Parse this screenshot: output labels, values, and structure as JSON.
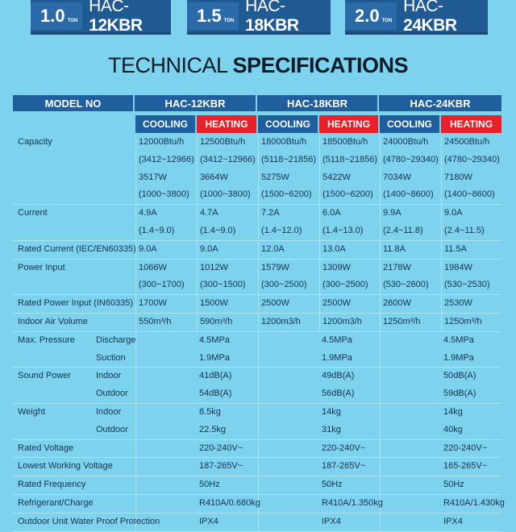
{
  "banners": [
    {
      "ton": "1.0",
      "ton_label": "TON",
      "model_prefix": "HAC-",
      "model_suffix": "12KBR"
    },
    {
      "ton": "1.5",
      "ton_label": "TON",
      "model_prefix": "HAC-",
      "model_suffix": "18KBR"
    },
    {
      "ton": "2.0",
      "ton_label": "TON",
      "model_prefix": "HAC-",
      "model_suffix": "24KBR"
    }
  ],
  "title": {
    "light": "TECHNICAL ",
    "bold": "SPECIFICATIONS"
  },
  "table": {
    "model_header": "MODEL NO",
    "models": [
      "HAC-12KBR",
      "HAC-18KBR",
      "HAC-24KBR"
    ],
    "modes": {
      "cooling": "COOLING",
      "heating": "HEATING"
    },
    "colors": {
      "header": "#1f5f9e",
      "heating": "#e8202a",
      "background": "#7dd3ee"
    },
    "rows": [
      {
        "label": "Capacity",
        "type": "modes",
        "lines": [
          [
            "12000Btu/h",
            "12500Btu/h",
            "18000Btu/h",
            "18500Btu/h",
            "24000Btu/h",
            "24500Btu/h"
          ],
          [
            "(3412~12966)",
            "(3412~12966)",
            "(5118~21856)",
            "(5118~21856)",
            "(4780~29340)",
            "(4780~29340)"
          ],
          [
            "3517W",
            "3664W",
            "5275W",
            "5422W",
            "7034W",
            "7180W"
          ],
          [
            "(1000~3800)",
            "(1000~3800)",
            "(1500~6200)",
            "(1500~6200)",
            "(1400~8600)",
            "(1400~8600)"
          ]
        ]
      },
      {
        "label": "Current",
        "type": "modes",
        "lines": [
          [
            "4.9A",
            "4.7A",
            "7.2A",
            "6.0A",
            "9.9A",
            "9.0A"
          ],
          [
            "(1.4~9.0)",
            "(1.4~9.0)",
            "(1.4~12.0)",
            "(1.4~13.0)",
            "(2.4~11.8)",
            "(2.4~11.5)"
          ]
        ]
      },
      {
        "label": "Rated Current (IEC/EN60335)",
        "type": "modes",
        "lines": [
          [
            "9.0A",
            "9.0A",
            "12.0A",
            "13.0A",
            "11.8A",
            "11.5A"
          ]
        ]
      },
      {
        "label": "Power Input",
        "type": "modes",
        "lines": [
          [
            "1066W",
            "1012W",
            "1579W",
            "1309W",
            "2178W",
            "1984W"
          ],
          [
            " (300~1700)",
            "(300~1500)",
            "(300~2500)",
            "(300~2500)",
            "(530~2600)",
            "(530~2530)"
          ]
        ]
      },
      {
        "label": "Rated Power Input (IN60335)",
        "type": "modes",
        "lines": [
          [
            "1700W",
            "1500W",
            "2500W",
            "2500W",
            "2600W",
            "2530W"
          ]
        ]
      },
      {
        "label": "Indoor Air Volume",
        "type": "modes",
        "lines": [
          [
            "550m³/h",
            "590m³/h",
            "1200m3/h",
            "1200m3/h",
            "1250m³/h",
            "1250m³/h"
          ]
        ]
      },
      {
        "label": "Max. Pressure",
        "type": "shared",
        "sublabels": [
          "Discharge",
          "Suction"
        ],
        "lines": [
          [
            "4.5MPa",
            "4.5MPa",
            "4.5MPa"
          ],
          [
            "1.9MPa",
            "1.9MPa",
            "1.9MPa"
          ]
        ]
      },
      {
        "label": "Sound Power",
        "type": "shared",
        "sublabels": [
          "Indoor",
          "Outdoor"
        ],
        "lines": [
          [
            "41dB(A)",
            "49dB(A)",
            "50dB(A)"
          ],
          [
            "54dB(A)",
            "56dB(A)",
            "59dB(A)"
          ]
        ]
      },
      {
        "label": "Weight",
        "type": "shared",
        "sublabels": [
          "Indoor",
          "Outdoor"
        ],
        "lines": [
          [
            "8.5kg",
            "14kg",
            "14kg"
          ],
          [
            "22.5kg",
            "31kg",
            "40kg"
          ]
        ]
      },
      {
        "label": "Rated Voltage",
        "type": "shared",
        "lines": [
          [
            "220-240V~",
            "220-240V~",
            "220-240V~"
          ]
        ]
      },
      {
        "label": "Lowest Working Voltage",
        "type": "shared",
        "lines": [
          [
            "187-265V~",
            "187-265V~",
            "165-265V~"
          ]
        ]
      },
      {
        "label": "Rated Frequency",
        "type": "shared",
        "lines": [
          [
            "50Hz",
            "50Hz",
            "50Hz"
          ]
        ]
      },
      {
        "label": "Refrigerant/Charge",
        "type": "shared",
        "lines": [
          [
            "R410A/0.680kg",
            "R410A/1.350kg",
            "R410A/1.430kg"
          ]
        ]
      },
      {
        "label": "Outdoor Unit Water Proof Protection",
        "type": "shared",
        "lines": [
          [
            "IPX4",
            "IPX4",
            "IPX4"
          ]
        ]
      }
    ]
  }
}
